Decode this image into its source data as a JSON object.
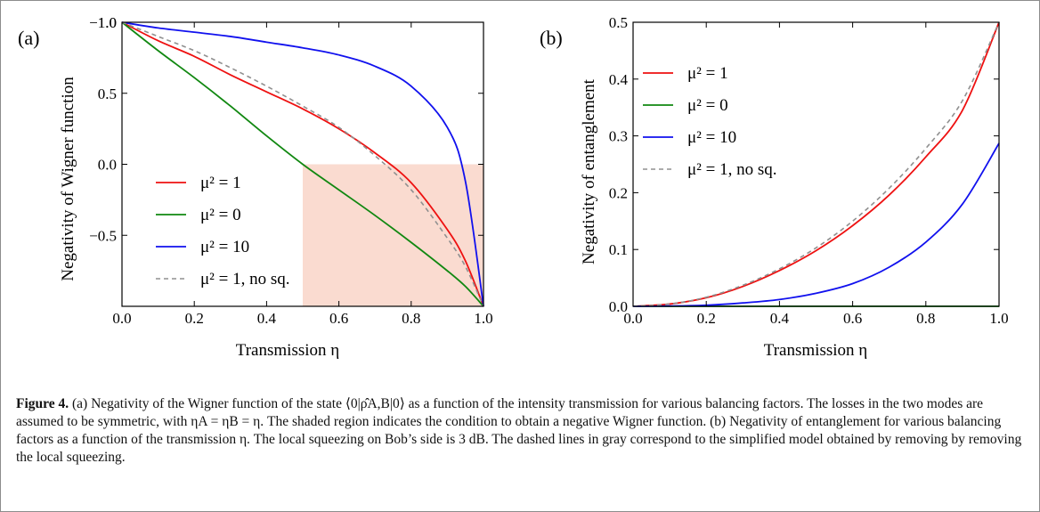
{
  "chart_data": [
    {
      "type": "line",
      "panel_label": "(a)",
      "xlabel": "Transmission η",
      "ylabel": "Negativity of Wigner function",
      "xlim": [
        0.0,
        1.0
      ],
      "ylim": [
        -1.0,
        1.0
      ],
      "xticks": [
        "0.0",
        "0.2",
        "0.4",
        "0.6",
        "0.8",
        "1.0"
      ],
      "yticks": [
        "1.0",
        "0.5",
        "0.0",
        "−0.5",
        "−1.0"
      ],
      "shaded_region": {
        "x": [
          0.5,
          1.0
        ],
        "y": [
          -1.0,
          0.0
        ],
        "color": "#fadbd0"
      },
      "legend_position": "lower-left",
      "x": [
        0.0,
        0.1,
        0.2,
        0.3,
        0.4,
        0.5,
        0.6,
        0.7,
        0.8,
        0.9,
        0.95,
        1.0
      ],
      "series": [
        {
          "name": "μ² = 1",
          "color": "#ee1111",
          "dash": false,
          "values": [
            1.0,
            0.87,
            0.76,
            0.63,
            0.51,
            0.39,
            0.25,
            0.08,
            -0.13,
            -0.46,
            -0.68,
            -1.0
          ]
        },
        {
          "name": "μ² = 0",
          "color": "#118811",
          "dash": false,
          "values": [
            1.0,
            0.8,
            0.61,
            0.41,
            0.2,
            0.0,
            -0.18,
            -0.36,
            -0.55,
            -0.75,
            -0.86,
            -1.0
          ]
        },
        {
          "name": "μ² = 10",
          "color": "#1111ee",
          "dash": false,
          "values": [
            1.0,
            0.96,
            0.93,
            0.9,
            0.86,
            0.82,
            0.77,
            0.69,
            0.55,
            0.26,
            -0.12,
            -1.0
          ]
        },
        {
          "name": "μ² = 1, no sq.",
          "color": "#909090",
          "dash": true,
          "values": [
            1.0,
            0.9,
            0.8,
            0.68,
            0.55,
            0.41,
            0.26,
            0.06,
            -0.18,
            -0.52,
            -0.72,
            -1.0
          ]
        }
      ]
    },
    {
      "type": "line",
      "panel_label": "(b)",
      "xlabel": "Transmission η",
      "ylabel": "Negativity of entanglement",
      "xlim": [
        0.0,
        1.0
      ],
      "ylim": [
        0.0,
        0.5
      ],
      "xticks": [
        "0.0",
        "0.2",
        "0.4",
        "0.6",
        "0.8",
        "1.0"
      ],
      "yticks": [
        "0.0",
        "0.1",
        "0.2",
        "0.3",
        "0.4",
        "0.5"
      ],
      "legend_position": "top-left",
      "x": [
        0.0,
        0.1,
        0.2,
        0.3,
        0.4,
        0.5,
        0.6,
        0.7,
        0.8,
        0.9,
        1.0
      ],
      "series": [
        {
          "name": "μ² = 1",
          "color": "#ee1111",
          "dash": false,
          "values": [
            0.0,
            0.004,
            0.015,
            0.035,
            0.063,
            0.098,
            0.142,
            0.196,
            0.263,
            0.345,
            0.5
          ]
        },
        {
          "name": "μ² = 0",
          "color": "#118811",
          "dash": false,
          "values": [
            0.0,
            0.0,
            0.0,
            0.0,
            0.0,
            0.0,
            0.0,
            0.0,
            0.0,
            0.0,
            0.0
          ]
        },
        {
          "name": "μ² = 10",
          "color": "#1111ee",
          "dash": false,
          "values": [
            0.0,
            0.0005,
            0.002,
            0.006,
            0.012,
            0.023,
            0.04,
            0.069,
            0.113,
            0.18,
            0.287
          ]
        },
        {
          "name": "μ² = 1, no sq.",
          "color": "#909090",
          "dash": true,
          "values": [
            0.0,
            0.004,
            0.016,
            0.037,
            0.066,
            0.103,
            0.15,
            0.208,
            0.278,
            0.362,
            0.5
          ]
        }
      ]
    }
  ],
  "caption": {
    "label": "Figure 4.",
    "text": " (a) Negativity of the Wigner function of the state ⟨0|ρ̂A,B|0⟩ as a function of the intensity transmission for various balancing factors. The losses in the two modes are assumed to be symmetric, with ηA = ηB = η. The shaded region indicates the condition to obtain a negative Wigner function. (b) Negativity of entanglement for various balancing factors as a function of the transmission η. The local squeezing on Bob’s side is 3 dB. The dashed lines in gray correspond to the simplified model obtained by removing by removing the local squeezing."
  }
}
